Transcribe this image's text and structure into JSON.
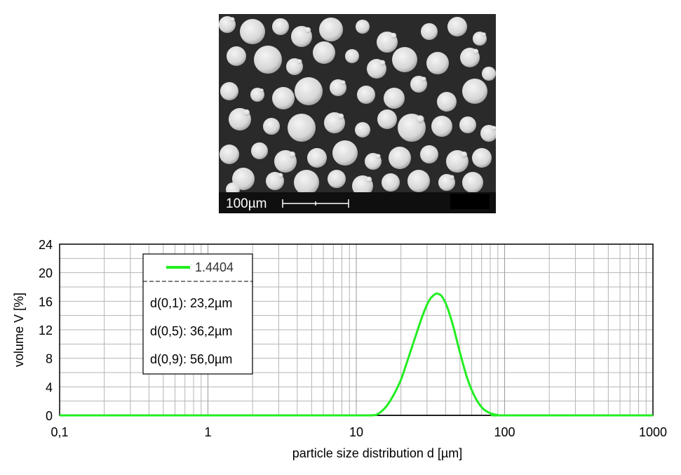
{
  "sem_image": {
    "scale_bar_label": "100µm",
    "background_color": "#2a2a2a",
    "particle_color": "#dcdcdc"
  },
  "chart_data": {
    "type": "line",
    "xscale": "log",
    "xlim": [
      0.1,
      1000
    ],
    "ylim": [
      0,
      24
    ],
    "xticks": [
      0.1,
      1,
      10,
      100,
      1000
    ],
    "xtick_labels": [
      "0,1",
      "1",
      "10",
      "100",
      "1000"
    ],
    "yticks": [
      0,
      4,
      8,
      12,
      16,
      20,
      24
    ],
    "ytick_labels": [
      "0",
      "4",
      "8",
      "12",
      "16",
      "20",
      "24"
    ],
    "xlabel": "particle size distribution d  [µm]",
    "ylabel": "volume  V [%]",
    "grid": true,
    "legend_position": "top-left",
    "series": [
      {
        "name": "1.4404",
        "color": "#22ee22",
        "x": [
          0.1,
          1,
          10,
          12.6,
          14,
          16,
          18,
          20,
          22,
          25,
          28,
          31,
          34,
          36,
          38,
          41,
          45,
          50,
          56,
          63,
          71,
          80,
          90,
          100,
          1000
        ],
        "y": [
          0,
          0,
          0,
          0,
          0.2,
          1.3,
          3.0,
          5.0,
          7.5,
          11.0,
          14.0,
          16.1,
          17.0,
          17.0,
          16.6,
          15.2,
          12.5,
          8.8,
          5.2,
          2.6,
          1.0,
          0.3,
          0.05,
          0,
          0
        ]
      }
    ],
    "annotations": [
      "d(0,1): 23,2µm",
      "d(0,5): 36,2µm",
      "d(0,9): 56,0µm"
    ]
  }
}
